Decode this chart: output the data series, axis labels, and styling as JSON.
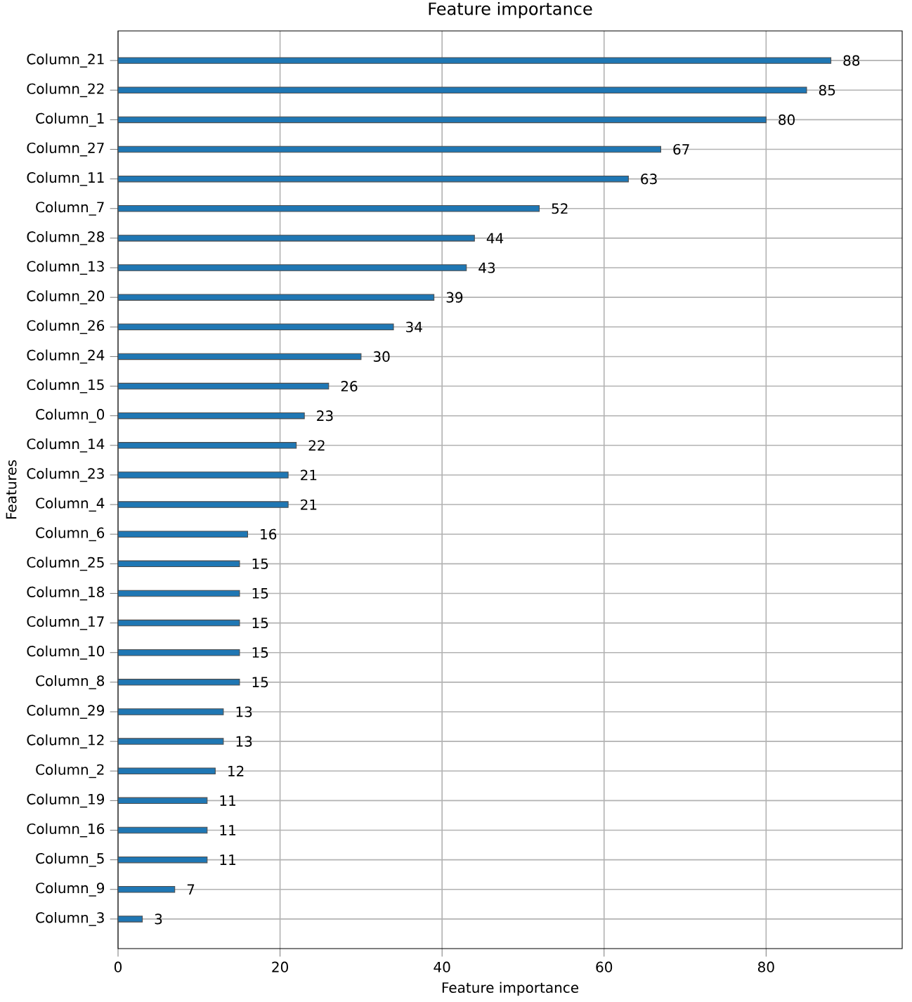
{
  "chart_data": {
    "type": "bar",
    "orientation": "horizontal",
    "title": "Feature importance",
    "xlabel": "Feature importance",
    "ylabel": "Features",
    "categories": [
      "Column_21",
      "Column_22",
      "Column_1",
      "Column_27",
      "Column_11",
      "Column_7",
      "Column_28",
      "Column_13",
      "Column_20",
      "Column_26",
      "Column_24",
      "Column_15",
      "Column_0",
      "Column_14",
      "Column_23",
      "Column_4",
      "Column_6",
      "Column_25",
      "Column_18",
      "Column_17",
      "Column_10",
      "Column_8",
      "Column_29",
      "Column_12",
      "Column_2",
      "Column_19",
      "Column_16",
      "Column_5",
      "Column_9",
      "Column_3"
    ],
    "values": [
      88,
      85,
      80,
      67,
      63,
      52,
      44,
      43,
      39,
      34,
      30,
      26,
      23,
      22,
      21,
      21,
      16,
      15,
      15,
      15,
      15,
      15,
      13,
      13,
      12,
      11,
      11,
      11,
      7,
      3
    ],
    "color": "#1f77b4",
    "xlim": [
      0,
      96.8
    ],
    "xticks": [
      0,
      20,
      40,
      60,
      80
    ],
    "grid": true,
    "data_labels": true
  }
}
